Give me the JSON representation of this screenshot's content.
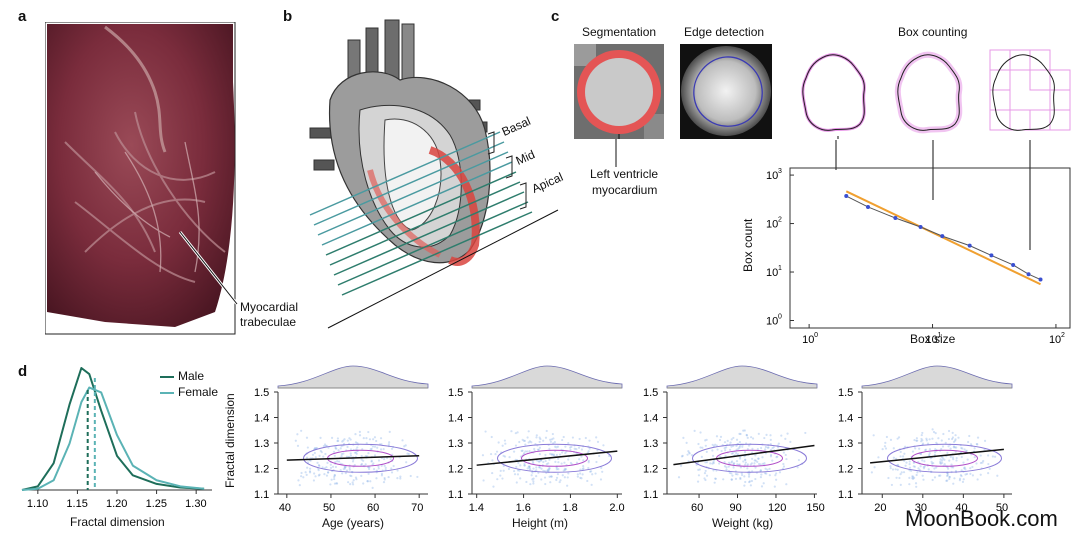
{
  "panels": {
    "a": {
      "letter": "a",
      "callout": [
        "Myocardial",
        "trabeculae"
      ]
    },
    "b": {
      "letter": "b",
      "regions": [
        "Basal",
        "Mid",
        "Apical"
      ]
    },
    "c": {
      "letter": "c",
      "titles": {
        "segmentation": "Segmentation",
        "edge": "Edge detection",
        "box": "Box counting"
      },
      "callout": [
        "Left ventricle",
        "myocardium"
      ],
      "plot": {
        "xlabel": "Box size",
        "ylabel": "Box count",
        "xticks": [
          "10",
          "10",
          "10"
        ],
        "xexp": [
          "0",
          "1",
          "2"
        ],
        "yticks": [
          "10",
          "10",
          "10",
          "10"
        ],
        "yexp": [
          "0",
          "1",
          "2",
          "3"
        ]
      }
    },
    "d": {
      "letter": "d",
      "legend": [
        "Male",
        "Female"
      ],
      "colors": {
        "male": "#1e6e5a",
        "female": "#5bb3b5"
      },
      "density_xlabel": "Fractal dimension",
      "density_xticks": [
        "1.10",
        "1.15",
        "1.20",
        "1.25",
        "1.30"
      ],
      "ylabel": "Fractal dimension",
      "yticks": [
        "1.5",
        "1.4",
        "1.3",
        "1.2",
        "1.1"
      ],
      "scatters": [
        {
          "xlabel": "Age (years)",
          "xticks": [
            "40",
            "50",
            "60",
            "70"
          ]
        },
        {
          "xlabel": "Height (m)",
          "xticks": [
            "1.4",
            "1.6",
            "1.8",
            "2.0"
          ]
        },
        {
          "xlabel": "Weight (kg)",
          "xticks": [
            "60",
            "90",
            "120",
            "150"
          ]
        },
        {
          "xlabel": "BMI",
          "xticks": [
            "20",
            "30",
            "40",
            "50"
          ]
        }
      ]
    }
  },
  "watermark": "MoonBook.com",
  "chart_data": [
    {
      "type": "line",
      "panel": "c",
      "x": [
        2,
        3,
        5,
        8,
        12,
        20,
        30,
        45,
        60,
        75
      ],
      "y": [
        370,
        220,
        130,
        85,
        55,
        35,
        22,
        14,
        9,
        7
      ],
      "xlabel": "Box size",
      "ylabel": "Box count",
      "xscale": "log",
      "yscale": "log",
      "xlim": [
        0.7,
        130
      ],
      "ylim": [
        0.7,
        1400
      ]
    },
    {
      "type": "line",
      "panel": "d",
      "x": [
        1.08,
        1.1,
        1.12,
        1.14,
        1.155,
        1.165,
        1.18,
        1.2,
        1.22,
        1.25,
        1.28,
        1.31
      ],
      "series": [
        {
          "name": "Male",
          "values": [
            0.0,
            0.03,
            0.22,
            0.7,
            1.0,
            0.95,
            0.65,
            0.28,
            0.12,
            0.05,
            0.02,
            0.01
          ]
        },
        {
          "name": "Female",
          "values": [
            0.0,
            0.01,
            0.08,
            0.38,
            0.72,
            0.84,
            0.8,
            0.45,
            0.2,
            0.08,
            0.03,
            0.01
          ]
        }
      ],
      "xlabel": "Fractal dimension",
      "xlim": [
        1.08,
        1.32
      ]
    },
    {
      "type": "scatter",
      "panel": "d",
      "xlabel": "Age (years)",
      "xlim": [
        38,
        72
      ],
      "ylim": [
        1.1,
        1.5
      ],
      "trend": [
        [
          40,
          1.233
        ],
        [
          70,
          1.25
        ]
      ]
    },
    {
      "type": "scatter",
      "panel": "d",
      "xlabel": "Height (m)",
      "xlim": [
        1.38,
        2.02
      ],
      "ylim": [
        1.1,
        1.5
      ],
      "trend": [
        [
          1.4,
          1.213
        ],
        [
          2.0,
          1.268
        ]
      ]
    },
    {
      "type": "scatter",
      "panel": "d",
      "xlabel": "Weight (kg)",
      "xlim": [
        35,
        152
      ],
      "ylim": [
        1.1,
        1.5
      ],
      "trend": [
        [
          40,
          1.215
        ],
        [
          150,
          1.29
        ]
      ]
    },
    {
      "type": "scatter",
      "panel": "d",
      "xlabel": "BMI",
      "xlim": [
        15,
        52
      ],
      "ylim": [
        1.1,
        1.5
      ],
      "trend": [
        [
          17,
          1.222
        ],
        [
          50,
          1.275
        ]
      ]
    }
  ]
}
